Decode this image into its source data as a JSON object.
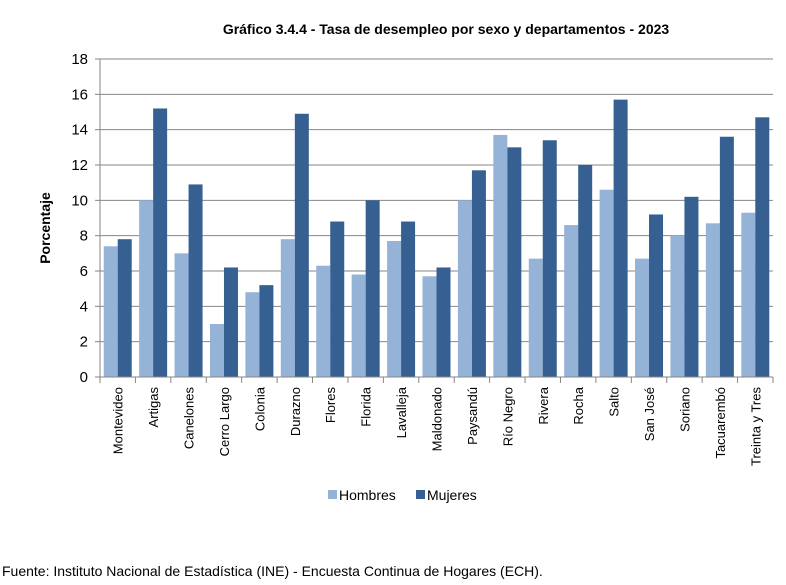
{
  "chart_data": {
    "type": "bar",
    "title": "Gráfico 3.4.4 - Tasa de desempleo por sexo y departamentos - 2023",
    "ylabel": "Porcentaje",
    "xlabel": "",
    "ylim": [
      0,
      18
    ],
    "yticks": [
      0,
      2,
      4,
      6,
      8,
      10,
      12,
      14,
      16,
      18
    ],
    "grid": true,
    "legend_position": "bottom",
    "categories": [
      "Montevideo",
      "Artigas",
      "Canelones",
      "Cerro Largo",
      "Colonia",
      "Durazno",
      "Flores",
      "Florida",
      "Lavalleja",
      "Maldonado",
      "Paysandú",
      "Río Negro",
      "Rivera",
      "Rocha",
      "Salto",
      "San José",
      "Soriano",
      "Tacuarembó",
      "Treinta y Tres"
    ],
    "series": [
      {
        "name": "Hombres",
        "color": "#95b3d7",
        "values": [
          7.4,
          10.0,
          7.0,
          3.0,
          4.8,
          7.8,
          6.3,
          5.8,
          7.7,
          5.7,
          10.0,
          13.7,
          6.7,
          8.6,
          10.6,
          6.7,
          8.0,
          8.7,
          9.3
        ]
      },
      {
        "name": "Mujeres",
        "color": "#366092",
        "values": [
          7.8,
          15.2,
          10.9,
          6.2,
          5.2,
          14.9,
          8.8,
          10.0,
          8.8,
          6.2,
          11.7,
          13.0,
          13.4,
          12.0,
          15.7,
          9.2,
          10.2,
          13.6,
          14.7
        ]
      }
    ]
  },
  "source": "Fuente: Instituto Nacional de Estadística (INE) - Encuesta Continua de Hogares (ECH)."
}
